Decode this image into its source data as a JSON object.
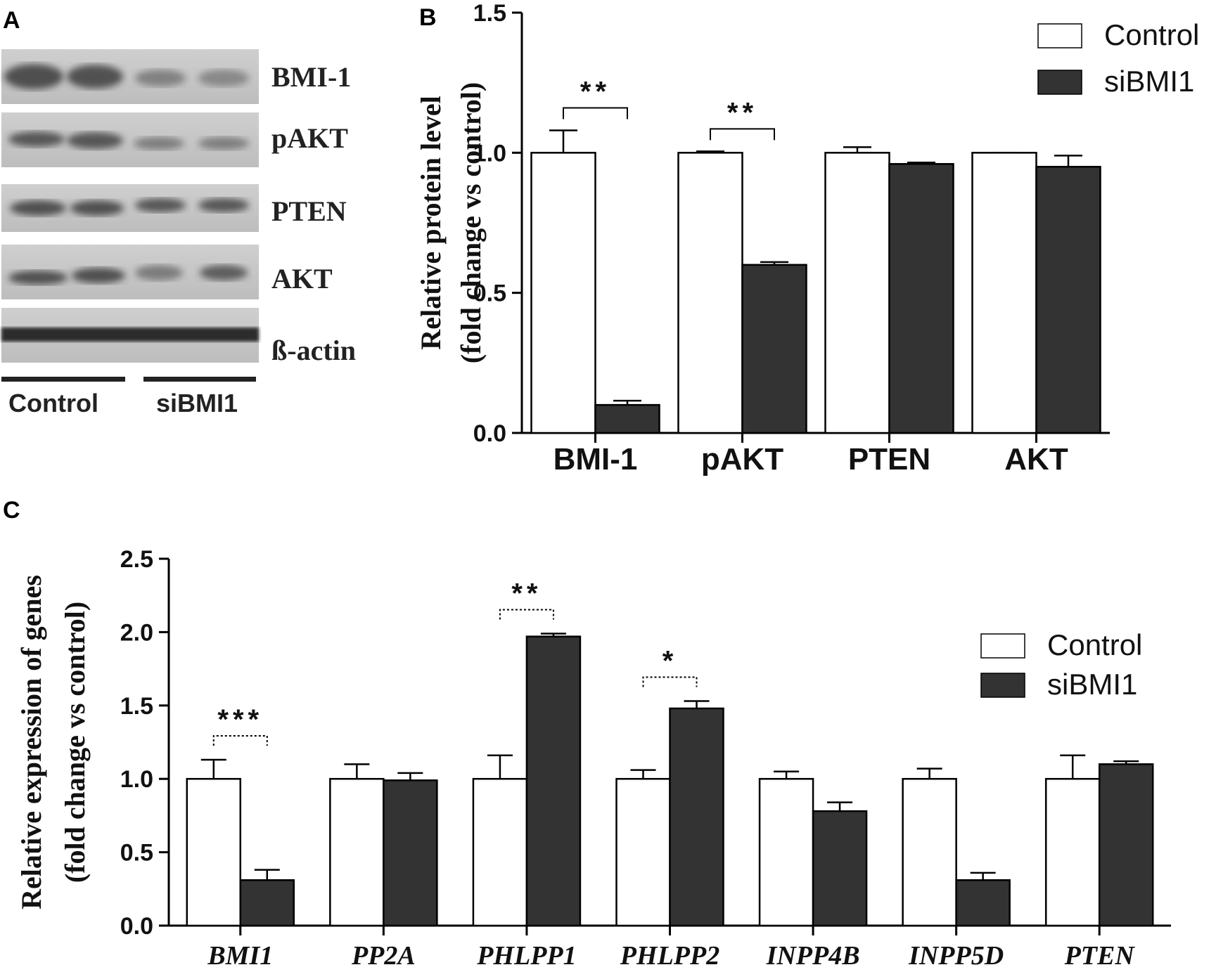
{
  "panel_a": {
    "letter": "A",
    "blot_labels": [
      "BMI-1",
      "pAKT",
      "PTEN",
      "AKT",
      "ß-actin"
    ],
    "group_labels": [
      "Control",
      "siBMI1"
    ]
  },
  "chart_data": [
    {
      "panel": "B",
      "type": "bar",
      "categories": [
        "BMI-1",
        "pAKT",
        "PTEN",
        "AKT"
      ],
      "series": [
        {
          "name": "Control",
          "values": [
            1.0,
            1.0,
            1.0,
            1.0
          ],
          "errors": [
            0.08,
            0.005,
            0.02,
            0.0
          ],
          "color": "#ffffff"
        },
        {
          "name": "siBMI1",
          "values": [
            0.1,
            0.6,
            0.96,
            0.95
          ],
          "errors": [
            0.015,
            0.01,
            0.005,
            0.04
          ],
          "color": "#333333"
        }
      ],
      "ylabel_line1": "Relative protein level",
      "ylabel_line2": "(fold change vs control)",
      "ylim": [
        0,
        1.5
      ],
      "yticks": [
        0.0,
        0.5,
        1.0,
        1.5
      ],
      "ytick_labels": [
        "0.0",
        "0.5",
        "1.0",
        "1.5"
      ],
      "significance": [
        {
          "category_index": 0,
          "label": "**"
        },
        {
          "category_index": 1,
          "label": "**"
        }
      ],
      "legend": "top-right",
      "grid": false
    },
    {
      "panel": "C",
      "type": "bar",
      "categories": [
        "BMI1",
        "PP2A",
        "PHLPP1",
        "PHLPP2",
        "INPP4B",
        "INPP5D",
        "PTEN"
      ],
      "series": [
        {
          "name": "Control",
          "values": [
            1.0,
            1.0,
            1.0,
            1.0,
            1.0,
            1.0,
            1.0
          ],
          "errors": [
            0.13,
            0.1,
            0.16,
            0.06,
            0.05,
            0.07,
            0.16
          ],
          "color": "#ffffff"
        },
        {
          "name": "siBMI1",
          "values": [
            0.31,
            0.99,
            1.97,
            1.48,
            0.78,
            0.31,
            1.1
          ],
          "errors": [
            0.07,
            0.05,
            0.02,
            0.05,
            0.06,
            0.05,
            0.02
          ],
          "color": "#333333"
        }
      ],
      "ylabel_line1": "Relative expression of genes",
      "ylabel_line2": "(fold change vs control)",
      "ylim": [
        0,
        2.5
      ],
      "yticks": [
        0.0,
        0.5,
        1.0,
        1.5,
        2.0,
        2.5
      ],
      "ytick_labels": [
        "0.0",
        "0.5",
        "1.0",
        "1.5",
        "2.0",
        "2.5"
      ],
      "significance": [
        {
          "category_index": 0,
          "label": "***"
        },
        {
          "category_index": 2,
          "label": "**"
        },
        {
          "category_index": 3,
          "label": "*"
        }
      ],
      "legend": "right",
      "grid": false
    }
  ],
  "panel_letters": {
    "b": "B",
    "c": "C"
  },
  "colors": {
    "control": "#ffffff",
    "sibmi1": "#333333",
    "axis": "#000000",
    "blot_bg": "#c9c9c9"
  }
}
